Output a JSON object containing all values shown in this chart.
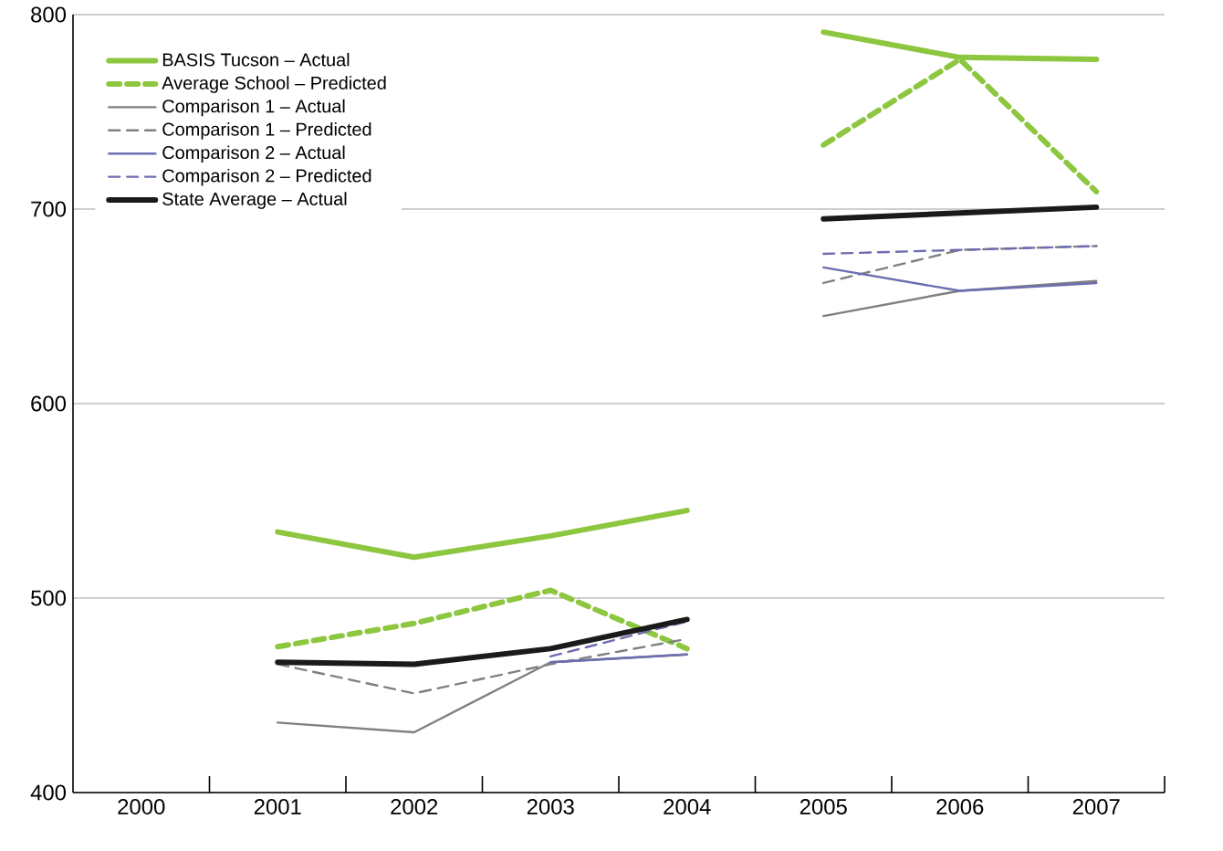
{
  "chart_data": {
    "type": "line",
    "categories": [
      "2000",
      "2001",
      "2002",
      "2003",
      "2004",
      "2005",
      "2006",
      "2007"
    ],
    "ylim": [
      400,
      800
    ],
    "yticks": [
      400,
      500,
      600,
      700,
      800
    ],
    "grid": "y",
    "legend": "top left",
    "marker": "none",
    "series": [
      {
        "name": "BASIS Tucson – Actual",
        "color": "#8dc63f",
        "line_style": "solid",
        "values": [
          null,
          534,
          521,
          532,
          545,
          null,
          null,
          null
        ]
      },
      {
        "name": "Average School – Predicted",
        "color": "#8dc63f",
        "line_style": "dashed",
        "values": [
          null,
          475,
          487,
          504,
          474,
          null,
          null,
          null
        ]
      },
      {
        "name": "Comparison 1 – Actual",
        "color": "#808080",
        "line_style": "solid",
        "values": [
          null,
          436,
          431,
          467,
          471,
          null,
          null,
          null
        ]
      },
      {
        "name": "Comparison 1 – Predicted",
        "color": "#808080",
        "line_style": "dashed",
        "values": [
          null,
          466,
          451,
          466,
          479,
          null,
          null,
          null
        ]
      },
      {
        "name": "Comparison 2 – Actual",
        "color": "#6d6db0",
        "line_style": "solid",
        "values": [
          null,
          null,
          null,
          467,
          471,
          null,
          null,
          null
        ]
      },
      {
        "name": "Comparison 2 – Predicted",
        "color": "#6d6db0",
        "line_style": "dashed",
        "values": [
          null,
          null,
          null,
          470,
          488,
          null,
          null,
          null
        ]
      },
      {
        "name": "State Average – Actual",
        "color": "#1a1a1a",
        "line_style": "solid",
        "values": [
          null,
          467,
          466,
          474,
          489,
          null,
          null,
          null
        ]
      },
      {
        "color": "#8dc63f",
        "line_style": "solid",
        "values": [
          null,
          null,
          null,
          null,
          null,
          791,
          778,
          777
        ]
      },
      {
        "color": "#8dc63f",
        "line_style": "dashed",
        "values": [
          null,
          null,
          null,
          null,
          null,
          733,
          777,
          709
        ]
      },
      {
        "color": "#808080",
        "line_style": "solid",
        "values": [
          null,
          null,
          null,
          null,
          null,
          645,
          658,
          663
        ]
      },
      {
        "color": "#808080",
        "line_style": "dashed",
        "values": [
          null,
          null,
          null,
          null,
          null,
          662,
          679,
          681
        ]
      },
      {
        "color": "#6d6db0",
        "line_style": "solid",
        "values": [
          null,
          null,
          null,
          null,
          null,
          670,
          658,
          662
        ]
      },
      {
        "color": "#6d6db0",
        "line_style": "dashed",
        "values": [
          null,
          null,
          null,
          null,
          null,
          677,
          679,
          681
        ]
      },
      {
        "color": "#1a1a1a",
        "line_style": "solid",
        "values": [
          null,
          null,
          null,
          null,
          null,
          695,
          698,
          701
        ]
      }
    ]
  }
}
